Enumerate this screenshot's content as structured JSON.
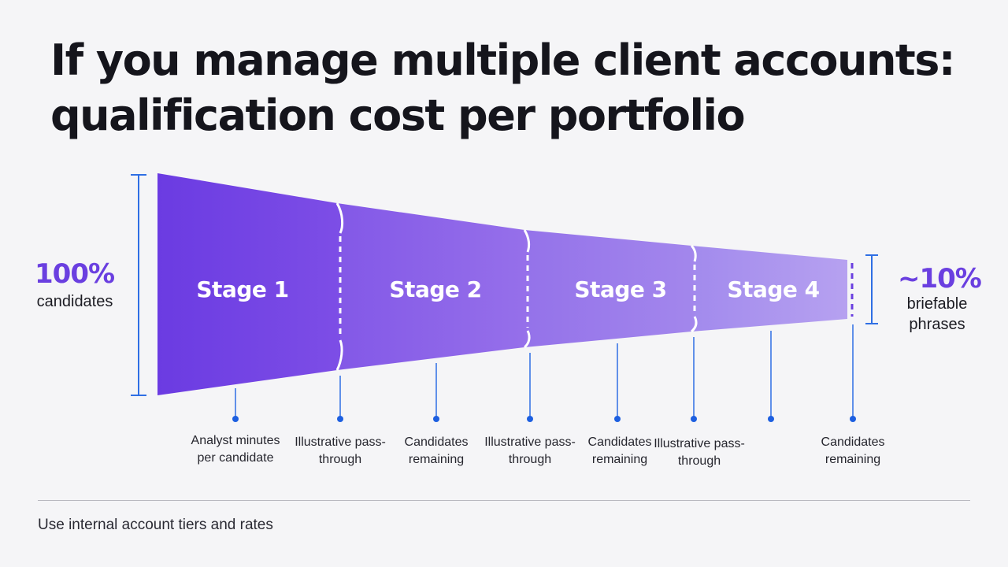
{
  "title": {
    "line1": "If you manage multiple client accounts:",
    "line2": "qualification cost per portfolio"
  },
  "funnel": {
    "start_value": "100%",
    "start_caption": "candidates",
    "end_value": "~10%",
    "end_caption": "briefable phrases",
    "stages": [
      "Stage 1",
      "Stage 2",
      "Stage 3",
      "Stage 4"
    ]
  },
  "captions": [
    "Analyst minutes per candidate",
    "Illustrative pass-through",
    "Candidates remaining",
    "Illustrative pass-through",
    "Candidates remaining",
    "Illustrative pass-through",
    "",
    "Candidates remaining"
  ],
  "colors": {
    "accent": "#6a3fe0",
    "marker": "#2563eb",
    "stage_fills": [
      "#7444e4",
      "#8a5ee8",
      "#9b79ea",
      "#ad93ee"
    ]
  },
  "footnote": "Use internal account tiers and rates"
}
